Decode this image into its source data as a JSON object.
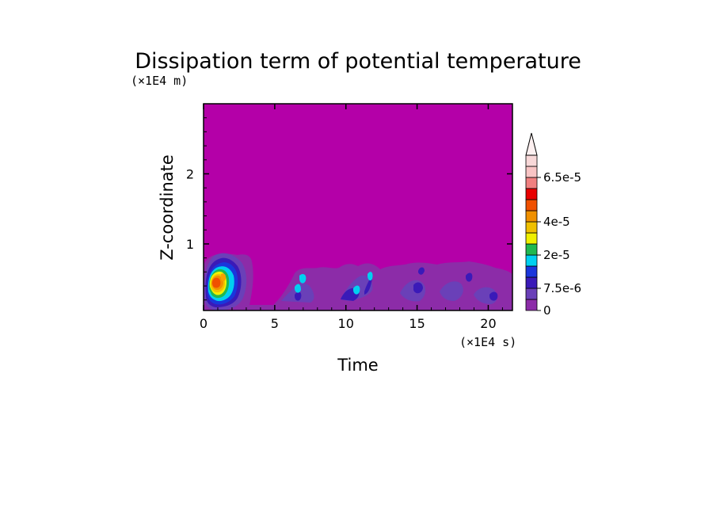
{
  "chart_data": {
    "type": "heatmap",
    "title": "Dissipation term of potential temperature",
    "xlabel": "Time",
    "ylabel": "Z-coordinate",
    "x_unit": "(×1E4 s)",
    "y_unit": "(×1E4 m)",
    "xlim": [
      0,
      21.7
    ],
    "ylim": [
      0.05,
      3.0
    ],
    "xticks": [
      "0",
      "5",
      "10",
      "15",
      "20"
    ],
    "xtick_values": [
      0,
      5,
      10,
      15,
      20
    ],
    "yticks": [
      "1",
      "2"
    ],
    "ytick_values": [
      1,
      2
    ],
    "background_level_color": "#b400a8",
    "colorbar": {
      "extend": "max",
      "labels": [
        "0",
        "7.5e-6",
        "2e-5",
        "4e-5",
        "6.5e-5"
      ],
      "label_values": [
        0,
        7.5e-06,
        2e-05,
        4e-05,
        6.5e-05
      ],
      "colors": [
        "#8c2ca8",
        "#6a40b8",
        "#3a1ab8",
        "#1a36dc",
        "#00d0f0",
        "#20b850",
        "#f0f000",
        "#f0c000",
        "#f09000",
        "#f05000",
        "#e80000",
        "#f08080",
        "#f8c4c4",
        "#f8d8d8"
      ]
    },
    "features": [
      {
        "x": 1.2,
        "z": 0.45,
        "level": "~6e-5 (max, red/orange core)"
      },
      {
        "x": 7.0,
        "z": 0.4,
        "level": "~1.5e-5 (cyan)"
      },
      {
        "x": 11.5,
        "z": 0.5,
        "level": "~1.5e-5 (cyan)"
      },
      {
        "x": 15.5,
        "z": 0.4,
        "level": "~7.5e-6 (blue)"
      },
      {
        "x": 21.0,
        "z": 0.25,
        "level": "~7.5e-6 (blue)"
      }
    ]
  }
}
